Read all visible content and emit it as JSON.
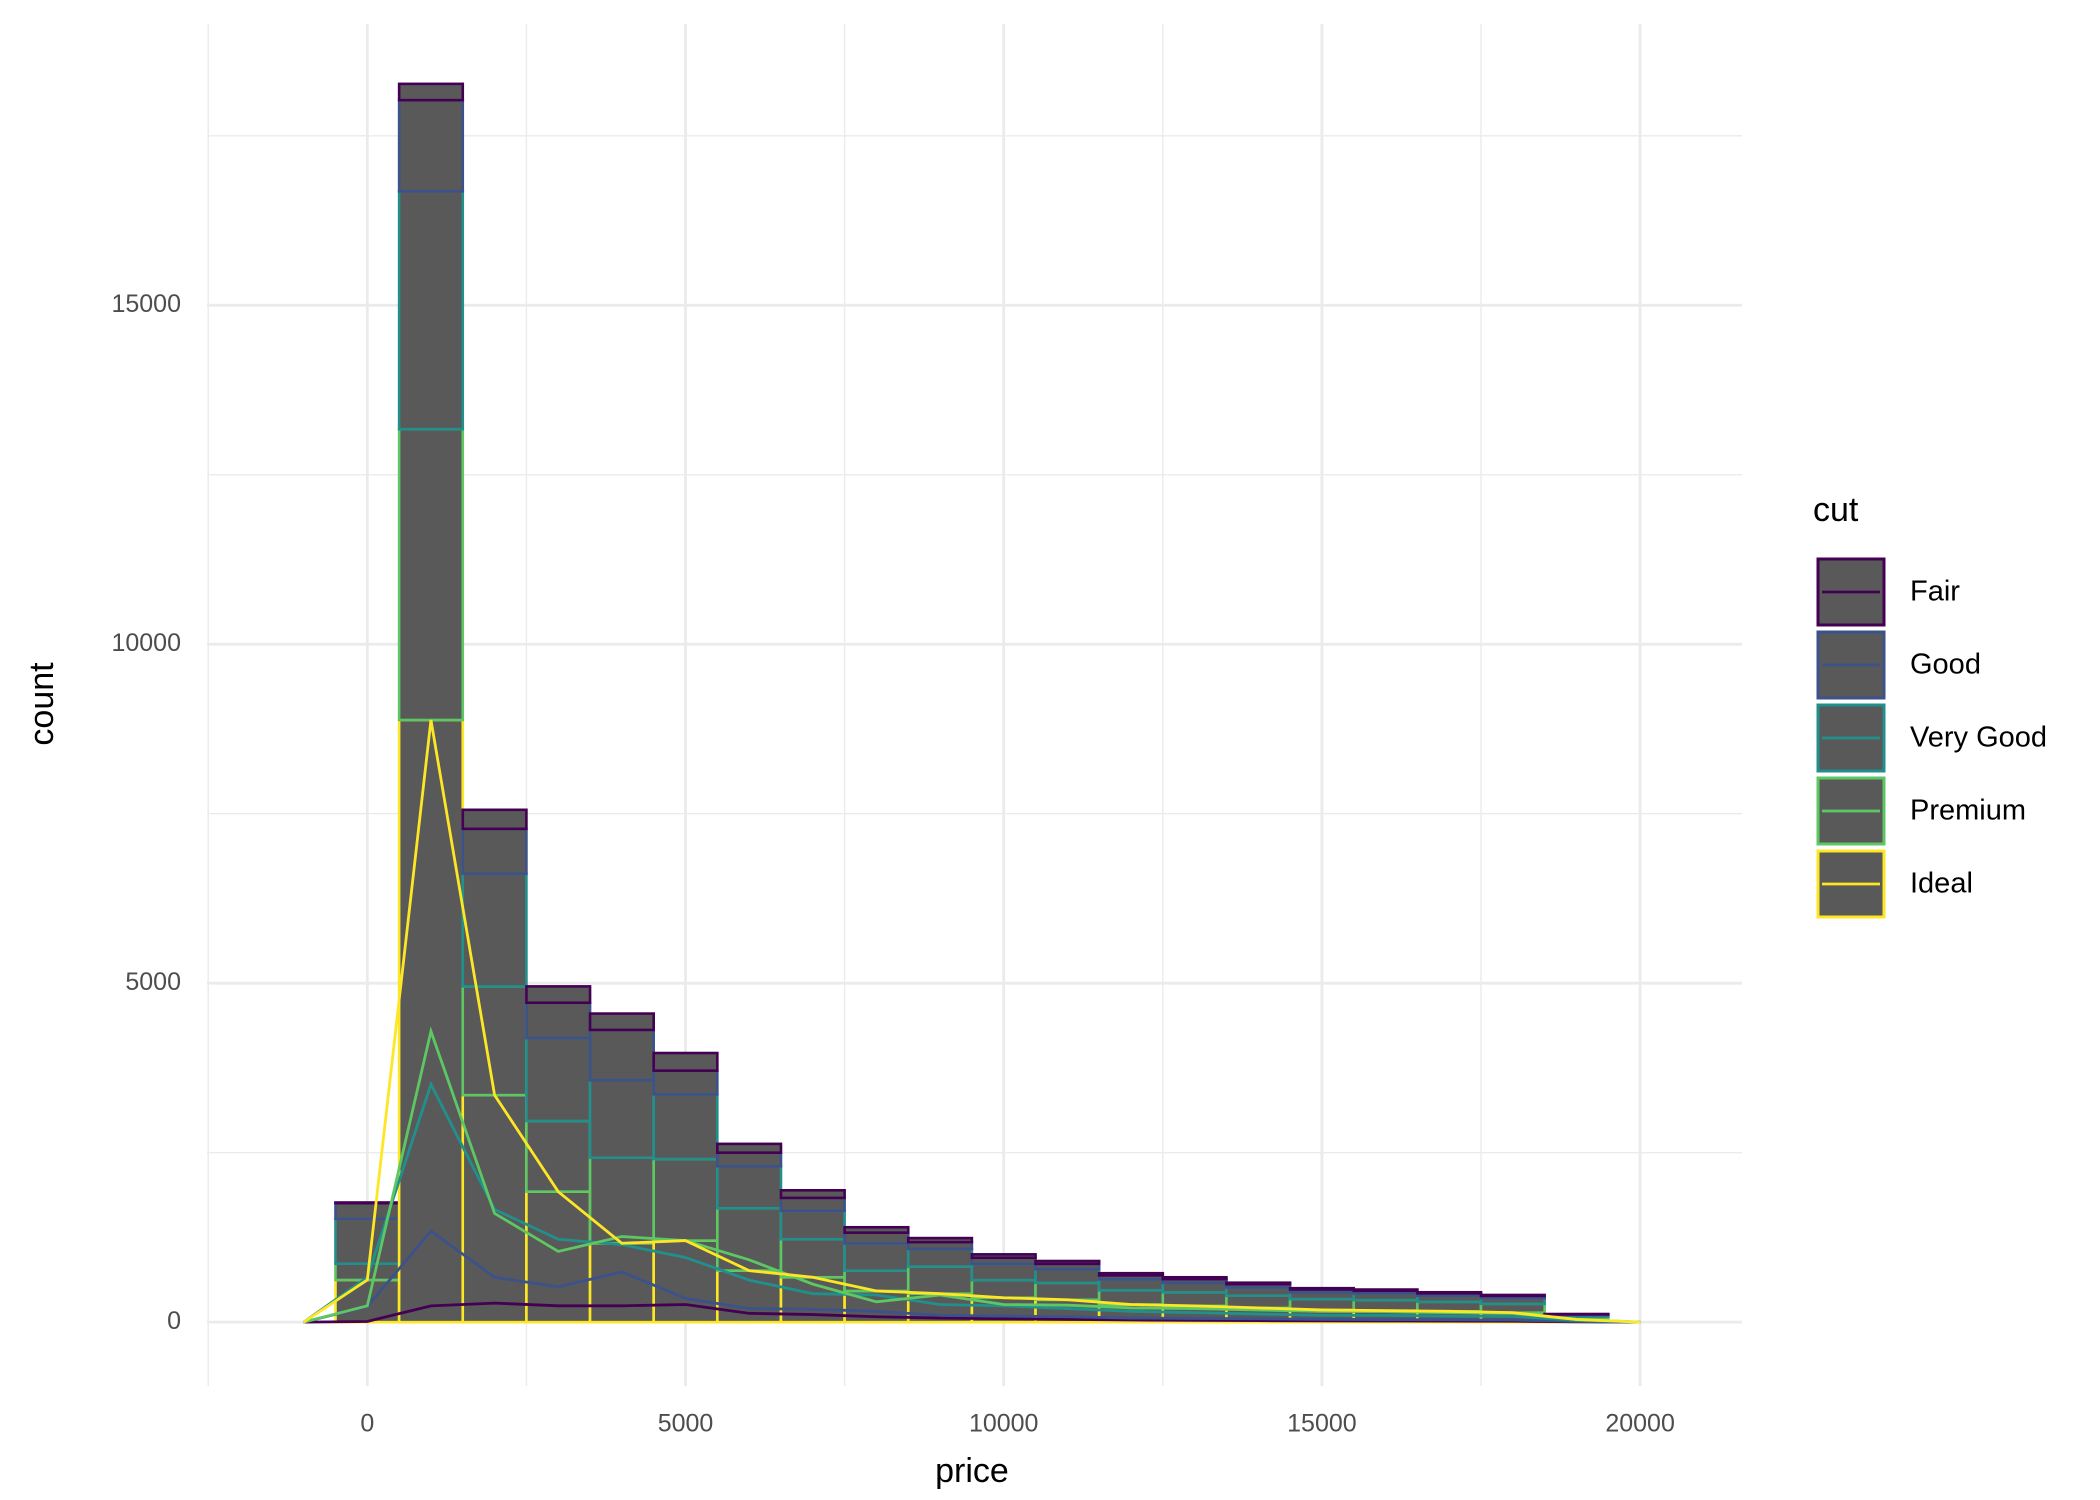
{
  "chart_data": {
    "type": "stacked-histogram-freqpoly",
    "x_label": "price",
    "y_label": "count",
    "legend_title": "cut",
    "bar_fill": "#595959",
    "binwidth": 1000,
    "x": [
      -1000,
      0,
      1000,
      2000,
      3000,
      4000,
      5000,
      6000,
      7000,
      8000,
      9000,
      10000,
      11000,
      12000,
      13000,
      14000,
      15000,
      16000,
      17000,
      18000,
      19000,
      20000
    ],
    "series": [
      {
        "name": "Fair",
        "color": "#440154",
        "values": [
          0,
          10,
          240,
          281,
          241,
          241,
          260,
          130,
          112,
          80,
          60,
          50,
          42,
          32,
          27,
          22,
          19,
          18,
          16,
          14,
          5,
          0
        ]
      },
      {
        "name": "Good",
        "color": "#3B528B",
        "values": [
          0,
          231,
          1344,
          662,
          521,
          742,
          350,
          200,
          190,
          160,
          100,
          90,
          80,
          60,
          55,
          50,
          42,
          38,
          35,
          32,
          10,
          0
        ]
      },
      {
        "name": "Very Good",
        "color": "#21908C",
        "values": [
          0,
          662,
          3509,
          1662,
          1223,
          1143,
          954,
          620,
          420,
          400,
          260,
          240,
          200,
          160,
          140,
          120,
          100,
          100,
          90,
          85,
          25,
          0
        ]
      },
      {
        "name": "Premium",
        "color": "#5DC863",
        "values": [
          0,
          240,
          4291,
          1604,
          1043,
          1263,
          1203,
          920,
          561,
          300,
          400,
          260,
          250,
          210,
          200,
          180,
          160,
          155,
          140,
          130,
          40,
          0
        ]
      },
      {
        "name": "Ideal",
        "color": "#FDE725",
        "values": [
          0,
          622,
          8883,
          3349,
          1925,
          1163,
          1203,
          760,
          662,
          460,
          420,
          360,
          330,
          260,
          240,
          210,
          180,
          170,
          160,
          140,
          40,
          0
        ]
      }
    ],
    "xlim": [
      -2519,
      21601
    ],
    "ylim": [
      -942,
      19150
    ],
    "xticks": [
      0,
      5000,
      10000,
      15000,
      20000
    ],
    "yticks": [
      0,
      5000,
      10000,
      15000
    ],
    "x_minor_ticks": [
      -2500,
      2500,
      7500,
      12500,
      17500
    ],
    "y_minor_ticks": [
      2500,
      7500,
      12500,
      17500
    ],
    "grid": true
  }
}
